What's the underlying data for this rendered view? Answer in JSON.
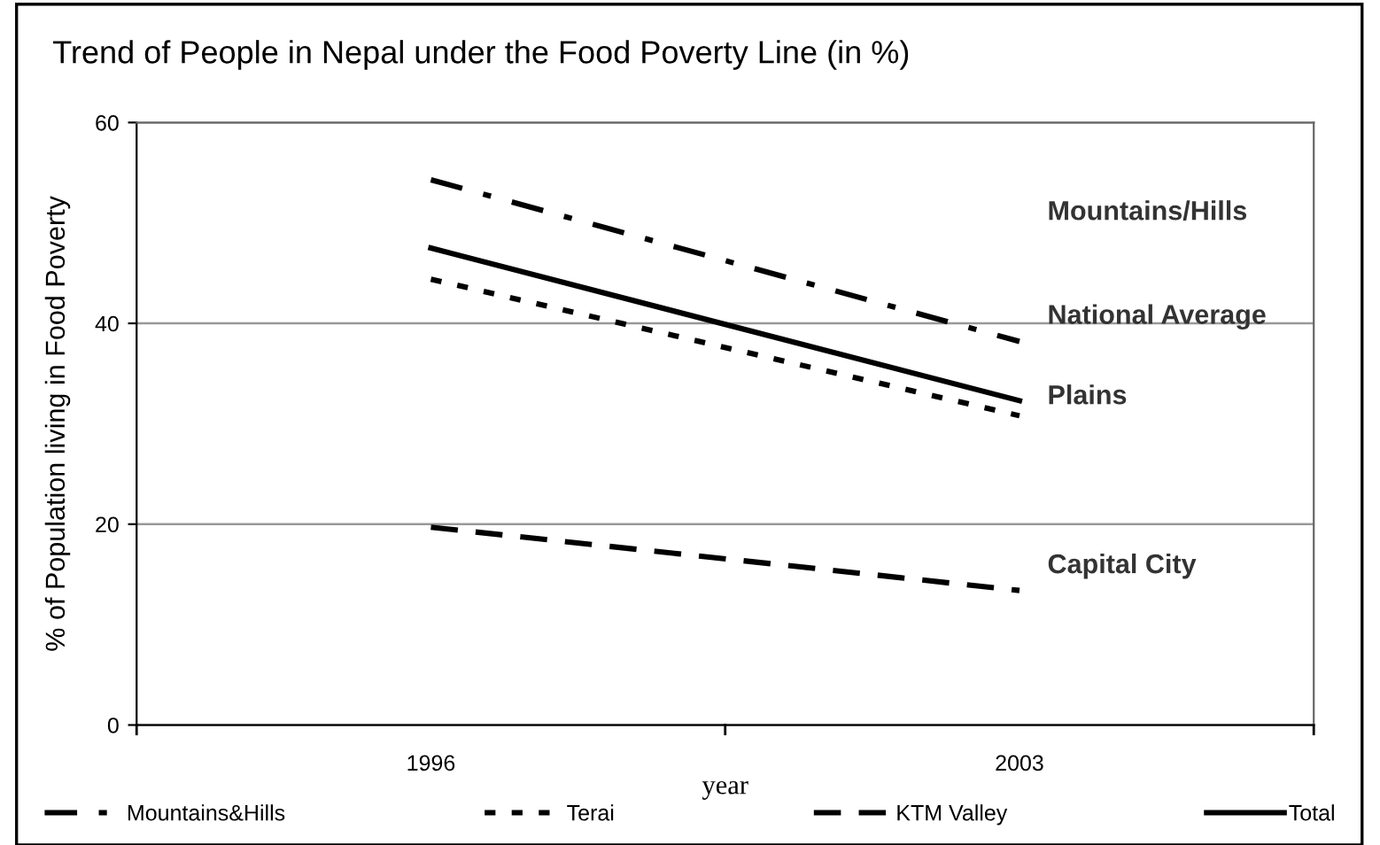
{
  "chart_data": {
    "type": "line",
    "title": "Trend of People in Nepal under the Food Poverty Line (in %)",
    "xlabel": "year",
    "ylabel": "% of Population living in Food Poverty",
    "categories": [
      "1996",
      "2003"
    ],
    "series": [
      {
        "name": "Mountains&Hills",
        "color": "#000000",
        "line_style": "dashdot",
        "values": [
          54.3,
          38.2
        ]
      },
      {
        "name": "Terai",
        "color": "#000000",
        "line_style": "dotted",
        "values": [
          44.4,
          30.8
        ]
      },
      {
        "name": "KTM Valley",
        "color": "#000000",
        "line_style": "dashed",
        "values": [
          19.7,
          13.4
        ]
      },
      {
        "name": "Total",
        "color": "#000000",
        "line_style": "solid",
        "values": [
          47.5,
          32.3
        ]
      }
    ],
    "ylim": [
      0,
      60
    ],
    "yticks": [
      0,
      20,
      40,
      60
    ],
    "grid": "y",
    "legend": "bottom",
    "marker": "none",
    "annotations": [
      "Mountains/Hills",
      "National Average",
      "Plains",
      "Capital City"
    ]
  }
}
